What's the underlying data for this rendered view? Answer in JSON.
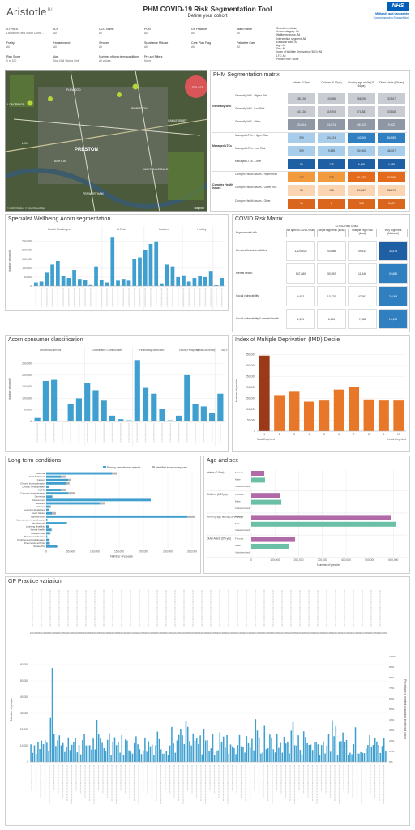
{
  "header": {
    "logo": "Aristotle",
    "logo_suffix": "BI",
    "title": "PHM COVID-19 Risk Segmentation Tool",
    "subtitle": "Define your cohort",
    "nhs_badge": "NHS",
    "org_line1": "Midlands and Lancashire",
    "org_line2": "Commissioning Support Unit"
  },
  "filters": [
    {
      "label": "STP/ICS",
      "value": "Lancashire and South Cumb..."
    },
    {
      "label": "ICP",
      "value": "All"
    },
    {
      "label": "CCG Name",
      "value": "All"
    },
    {
      "label": "PCN",
      "value": "All"
    },
    {
      "label": "GP Practice",
      "value": "All"
    },
    {
      "label": "Ward Name",
      "value": "All"
    },
    {
      "label": "Frailty",
      "value": "All"
    },
    {
      "label": "Housebound",
      "value": "All"
    },
    {
      "label": "Smoker",
      "value": "All"
    },
    {
      "label": "Substance Misuse",
      "value": "All"
    },
    {
      "label": "Care Plan Flag",
      "value": "All"
    },
    {
      "label": "Palliative Care",
      "value": "All"
    },
    {
      "label": "Risk Score",
      "value": "0 to 100"
    },
    {
      "label": "Age",
      "value": "Non-Null Values Only"
    },
    {
      "label": "Number of long term conditions",
      "value": "All values"
    },
    {
      "label": "Pre-set Filters",
      "value": "None"
    }
  ],
  "selection_summary": [
    "Selection criteria:",
    "Acorn category: All",
    "Wellbeing group: All",
    "Intervention segment: All",
    "Electoral ward: All",
    "Age: All",
    "Sex: All",
    "Index of Multiple Deprivation (IMD): All",
    "LTC: All",
    "Preset Filter: None"
  ],
  "map": {
    "bubble_label": "1,700,671",
    "places": [
      "LONGRIDGE",
      "PRESTON",
      "FULWOOD",
      "RIBBLETON",
      "ASHTON",
      "LEA",
      "PENWORTHAM",
      "WALTON-LE-DALE",
      "SAMLESBURY"
    ],
    "attribution": "© 2020 Mapbox © OpenStreetMap",
    "powered": "Mapbox",
    "colors": {
      "bubble": "#e0555a",
      "green": "#b5d63a"
    }
  },
  "matrix": {
    "title": "PHM Segmentation matrix",
    "columns": [
      "Infants (0-5yrs)",
      "Children (6-17yrs)",
      "Working age adults (18-64yrs)",
      "Older Adults (65+yrs)"
    ],
    "groups": [
      {
        "name": "Generally Well",
        "rows": [
          {
            "label": "Generally Well - Higher Risk",
            "values": [
              "38,126",
              "100,986",
              "288,096",
              "32,807"
            ]
          },
          {
            "label": "Generally Well - Low Risk",
            "values": [
              "40,126",
              "119,706",
              "371,381",
              "33,308"
            ]
          },
          {
            "label": "Generally Well - Other",
            "values": [
              "20,004",
              "10,674",
              "46,303",
              "9,502"
            ]
          }
        ]
      },
      {
        "name": "Managed LTCs",
        "rows": [
          {
            "label": "Managed LTCs - Higher Risk",
            "values": [
              "399",
              "24,224",
              "143,006",
              "84,285"
            ]
          },
          {
            "label": "Managed LTCs - Low Risk",
            "values": [
              "399",
              "9,685",
              "92,006",
              "46,007"
            ]
          },
          {
            "label": "Managed LTCs - Other",
            "values": [
              "56",
              "125",
              "6,466",
              "4,289"
            ]
          }
        ]
      },
      {
        "name": "Complex Health Issues",
        "rows": [
          {
            "label": "Complex Health Issues - Higher Risk",
            "values": [
              "137",
              "279",
              "61,870",
              "84,296"
            ]
          },
          {
            "label": "Complex Health Issues - Lower Risk",
            "values": [
              "36",
              "108",
              "24,387",
              "36,479"
            ]
          },
          {
            "label": "Complex Health Issues - Other",
            "values": [
              "19",
              "8",
              "978",
              "3,847"
            ]
          }
        ]
      }
    ],
    "colors": [
      [
        "#c9ccd2",
        "#c9ccd2",
        "#c9ccd2",
        "#c9ccd2"
      ],
      [
        "#c9ccd2",
        "#c9ccd2",
        "#c9ccd2",
        "#c9ccd2"
      ],
      [
        "#8e97a3",
        "#8e97a3",
        "#8e97a3",
        "#8e97a3"
      ],
      [
        "#a8cdea",
        "#a8cdea",
        "#2f7fc1",
        "#2f7fc1"
      ],
      [
        "#a8cdea",
        "#a8cdea",
        "#a8cdea",
        "#a8cdea"
      ],
      [
        "#1f5fa3",
        "#1f5fa3",
        "#1f5fa3",
        "#1f5fa3"
      ],
      [
        "#f19a3e",
        "#f19a3e",
        "#e46b1c",
        "#e46b1c"
      ],
      [
        "#fbd4b1",
        "#fbd4b1",
        "#fbd4b1",
        "#fbd4b1"
      ],
      [
        "#d9661c",
        "#d9661c",
        "#d9661c",
        "#d9661c"
      ]
    ]
  },
  "wellbeing": {
    "title": "Specialist Wellbeing Acorn segmentation",
    "ylabel": "Number of people",
    "groups": [
      "Health Challenges",
      "At Risk",
      "Caution",
      "Healthy",
      "Not"
    ],
    "yticks": [
      "0",
      "50,000",
      "100,000",
      "150,000",
      "200,000",
      "250,000"
    ],
    "ymax": 280000,
    "bars": [
      20000,
      25000,
      75000,
      120000,
      140000,
      55000,
      45000,
      90000,
      40000,
      35000,
      10000,
      110000,
      35000,
      20000,
      270000,
      30000,
      40000,
      30000,
      150000,
      160000,
      200000,
      235000,
      250000,
      15000,
      120000,
      110000,
      50000,
      60000,
      25000,
      45000,
      55000,
      50000,
      85000,
      5000,
      45000
    ]
  },
  "covid_risk": {
    "title": "COVID Risk Matrix",
    "group_header": "COVID Risk Group",
    "columns": [
      "No specific COVID risks",
      "Single High Risk (local)",
      "Multiple High Risk (local)",
      "Very High Risk (National)"
    ],
    "row_header": "Psychosocial risk",
    "rows": [
      {
        "label": "No specific vulnerabilities",
        "values": [
          "1,129,025",
          "203,886",
          "39,514",
          "38,574"
        ]
      },
      {
        "label": "Mental health",
        "values": [
          "147,860",
          "30,592",
          "11,546",
          "20,686"
        ]
      },
      {
        "label": "Social vulnerability",
        "values": [
          "4,632",
          "10,270",
          "47,362",
          "26,069"
        ]
      },
      {
        "label": "Social vulnerability & mental health",
        "values": [
          "1,299",
          "6,040",
          "7,558",
          "13,135"
        ]
      }
    ],
    "colors": [
      [
        "#ffffff",
        "#ffffff",
        "#ffffff",
        "#1f5fa3"
      ],
      [
        "#ffffff",
        "#ffffff",
        "#ffffff",
        "#2f7fc1"
      ],
      [
        "#ffffff",
        "#ffffff",
        "#ffffff",
        "#2f7fc1"
      ],
      [
        "#ffffff",
        "#ffffff",
        "#ffffff",
        "#2f7fc1"
      ]
    ]
  },
  "acorn": {
    "title": "Acorn consumer classification",
    "ylabel": "Number of people",
    "groups": [
      "Affluent Achievers",
      "Comfortable Communities",
      "Financially Stretched",
      "Rising Prosperity",
      "Urban Adversity",
      "Not Pri...",
      "Not"
    ],
    "yticks": [
      "0",
      "50,000",
      "100,000",
      "150,000",
      "200,000",
      "250,000"
    ],
    "ymax": 280000,
    "bars": [
      15000,
      175000,
      180000,
      0,
      75000,
      100000,
      165000,
      135000,
      90000,
      25000,
      10000,
      5000,
      265000,
      145000,
      120000,
      55000,
      5000,
      25000,
      200000,
      75000,
      65000,
      35000,
      120000
    ]
  },
  "imd": {
    "title": "Index of Multiple Deprivation (IMD) Decile",
    "ylabel": "Number of people",
    "yticks": [
      "0",
      "50,000",
      "100,000",
      "150,000",
      "200,000",
      "250,000",
      "300,000",
      "350,000"
    ],
    "ymax": 370000,
    "categories": [
      "1",
      "2",
      "3",
      "4",
      "5",
      "6",
      "7",
      "8",
      "9",
      "10"
    ],
    "values": [
      345000,
      165000,
      180000,
      135000,
      140000,
      190000,
      200000,
      145000,
      140000,
      140000
    ],
    "xleft": "Most Deprived",
    "xright": "Least Deprived",
    "colors": {
      "first": "#9a3a18",
      "rest": "#e8772a"
    }
  },
  "ltc": {
    "title": "Long term conditions",
    "legend": [
      "Primary care disease register",
      "Identified in secondary care"
    ],
    "xlabel": "Number of people",
    "xticks": [
      "0",
      "50,000",
      "100,000",
      "150,000",
      "200,000",
      "250,000",
      "300,000"
    ],
    "xmax": 310000,
    "conditions": [
      {
        "name": "Asthma",
        "primary": 135000,
        "secondary": 10000
      },
      {
        "name": "Atrial fibrillation",
        "primary": 30000,
        "secondary": 10000
      },
      {
        "name": "Cancer",
        "primary": 45000,
        "secondary": 5000
      },
      {
        "name": "Chronic kidney disease",
        "primary": 40000,
        "secondary": 8000
      },
      {
        "name": "Chronic renal disease",
        "primary": 5000,
        "secondary": 1000
      },
      {
        "name": "COPD",
        "primary": 30000,
        "secondary": 10000
      },
      {
        "name": "Coronary heart disease",
        "primary": 45000,
        "secondary": 15000
      },
      {
        "name": "Dementia",
        "primary": 12000,
        "secondary": 2000
      },
      {
        "name": "Depression",
        "primary": 215000,
        "secondary": 0
      },
      {
        "name": "Diabetes",
        "primary": 110000,
        "secondary": 10000
      },
      {
        "name": "Epilepsy",
        "primary": 8000,
        "secondary": 2000
      },
      {
        "name": "Learning disabilities",
        "primary": 5000,
        "secondary": 0
      },
      {
        "name": "Heart failure",
        "primary": 12000,
        "secondary": 8000
      },
      {
        "name": "Hypertension",
        "primary": 290000,
        "secondary": 15000
      },
      {
        "name": "Hypertensive heart disease",
        "primary": 2000,
        "secondary": 1000
      },
      {
        "name": "Hypothyroid",
        "primary": 40000,
        "secondary": 3000
      },
      {
        "name": "Learning disability",
        "primary": 6000,
        "secondary": 0
      },
      {
        "name": "Mental health",
        "primary": 10000,
        "secondary": 2000
      },
      {
        "name": "Osteoporosis",
        "primary": 8000,
        "secondary": 1000
      },
      {
        "name": "Parkinsons disease",
        "primary": 2000,
        "secondary": 500
      },
      {
        "name": "Peripheral arterial disease",
        "primary": 5000,
        "secondary": 2000
      },
      {
        "name": "Rheumatoid arthritis",
        "primary": 7000,
        "secondary": 1000
      },
      {
        "name": "Stroke/TIA",
        "primary": 22000,
        "secondary": 3000
      }
    ],
    "colors": {
      "primary": "#3fa0d0",
      "secondary": "#b3b3b3"
    }
  },
  "age_sex": {
    "title": "Age and sex",
    "xlabel": "Number of people",
    "xticks": [
      "0",
      "100,000",
      "200,000",
      "300,000",
      "400,000",
      "500,000",
      "600,000"
    ],
    "xmax": 650000,
    "groups": [
      {
        "name": "Infants (0-5yrs)",
        "rows": [
          {
            "sex": "Female",
            "value": 55000
          },
          {
            "sex": "Male",
            "value": 58000
          },
          {
            "sex": "Indetermined",
            "value": 0
          }
        ]
      },
      {
        "name": "Children (6-17yrs)",
        "rows": [
          {
            "sex": "Female",
            "value": 120000
          },
          {
            "sex": "Male",
            "value": 127000
          },
          {
            "sex": "Indetermined",
            "value": 0
          }
        ]
      },
      {
        "name": "Working age adults (18-64yrs)",
        "rows": [
          {
            "sex": "Female",
            "value": 590000
          },
          {
            "sex": "Male",
            "value": 610000
          },
          {
            "sex": "Indetermined",
            "value": 0
          }
        ]
      },
      {
        "name": "Older Adults (65+yrs)",
        "rows": [
          {
            "sex": "Female",
            "value": 185000
          },
          {
            "sex": "Male",
            "value": 160000
          },
          {
            "sex": "Indetermined",
            "value": 0
          }
        ]
      }
    ],
    "colors": {
      "Female": "#b06aa8",
      "Male": "#6bbfa6"
    }
  },
  "gp": {
    "title": "GP Practice variation",
    "ylabel": "Number of people",
    "ylabel_right": "Percentage of resident population in selected cohort",
    "yticks": [
      "0",
      "10,000",
      "20,000",
      "30,000",
      "40,000",
      "50,000",
      "60,000"
    ],
    "ymax": 65000,
    "pct_ticks": [
      "0%",
      "10%",
      "20%",
      "30%",
      "40%",
      "50%",
      "60%",
      "70%",
      "80%",
      "90%",
      "100%"
    ],
    "top_pct": "100.00%"
  }
}
